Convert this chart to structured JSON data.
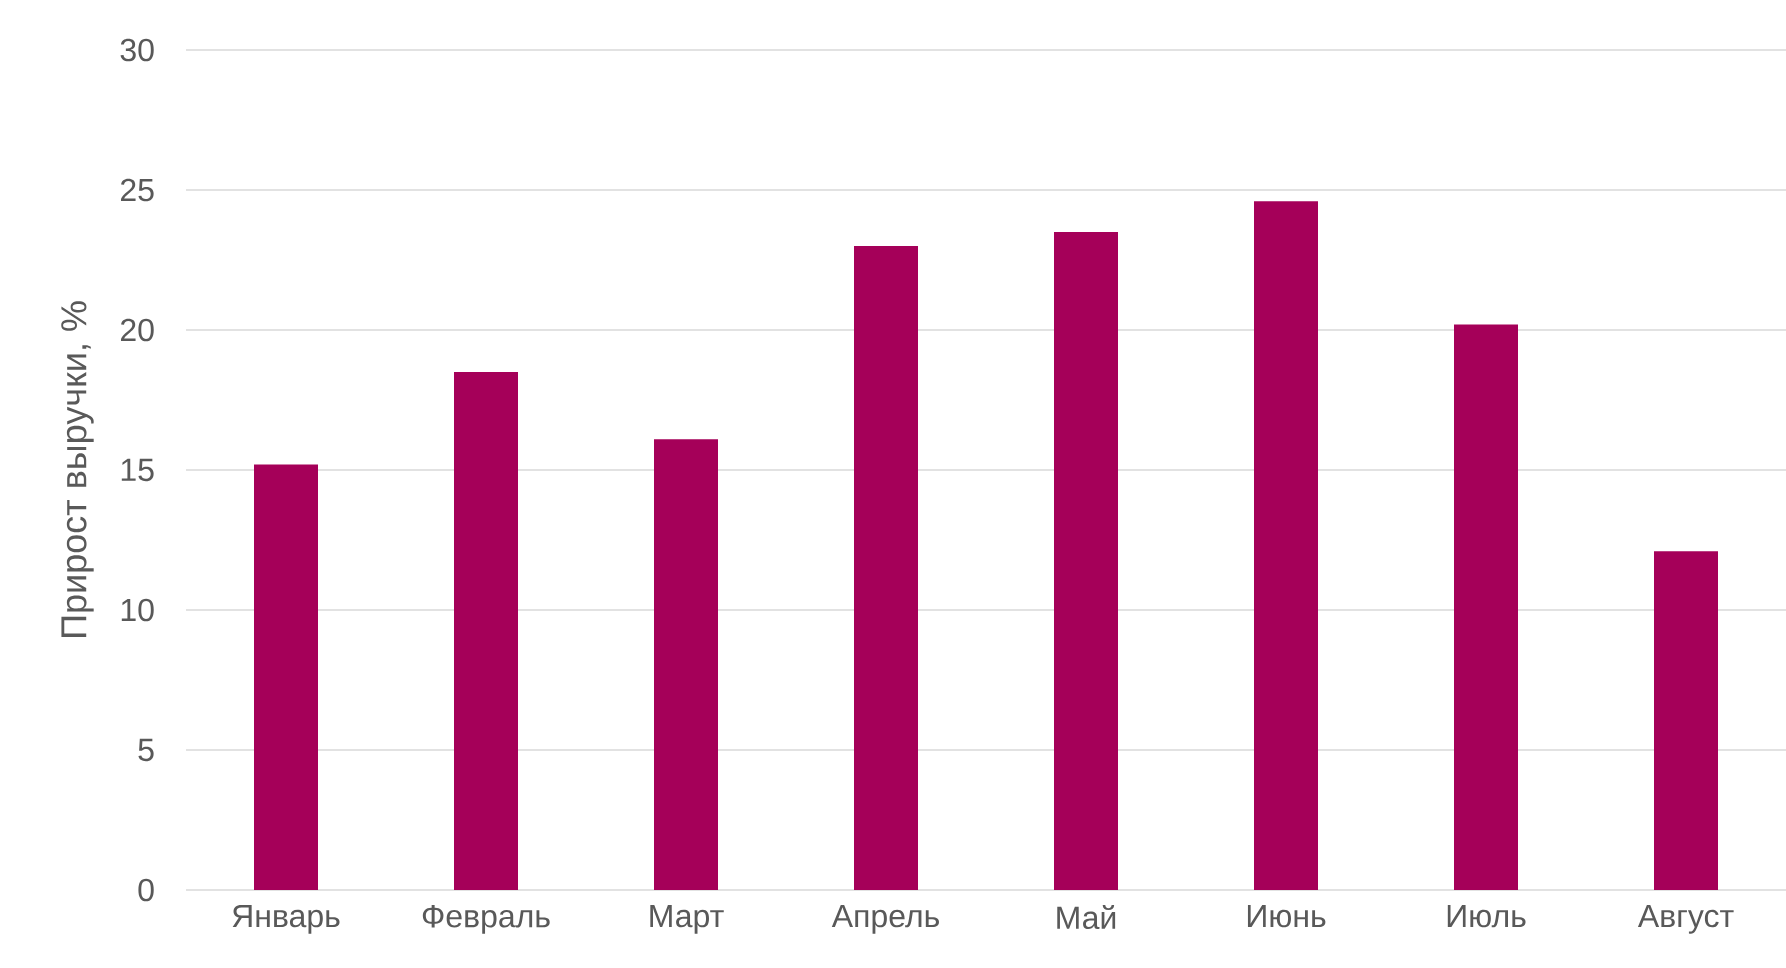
{
  "chart_data": {
    "type": "bar",
    "ylabel": "Прирост выручки, %",
    "categories": [
      "Январь",
      "Февраль",
      "Март",
      "Апрель",
      "Май",
      "Июнь",
      "Июль",
      "Август"
    ],
    "values": [
      15.2,
      18.5,
      16.1,
      23.0,
      23.5,
      24.6,
      20.2,
      12.1
    ],
    "color": "#a50059",
    "ylim": [
      0,
      30
    ],
    "yticks": [
      0,
      5,
      10,
      15,
      20,
      25,
      30
    ],
    "grid": "y"
  }
}
